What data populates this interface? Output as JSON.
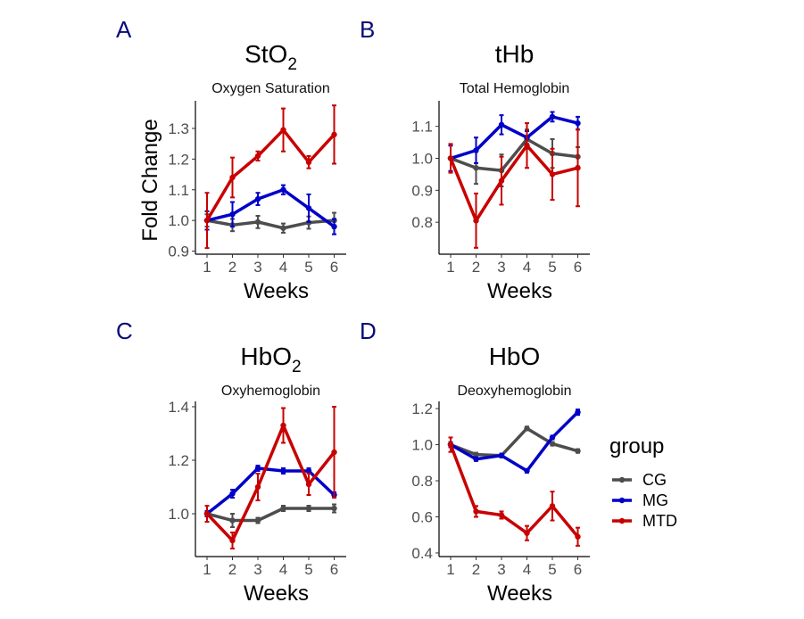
{
  "chart_data": [
    {
      "panel": "A",
      "type": "line",
      "title_main": "StO",
      "title_sub": "2",
      "subtitle": "Oxygen Saturation",
      "xlabel": "Weeks",
      "ylabel": "Fold Change",
      "x": [
        1,
        2,
        3,
        4,
        5,
        6
      ],
      "xticks": [
        1,
        2,
        3,
        4,
        5,
        6
      ],
      "yticks": [
        0.9,
        1.0,
        1.1,
        1.2,
        1.3
      ],
      "ytick_labels": [
        "0.9",
        "1.0",
        "1.1",
        "1.2",
        "1.3"
      ],
      "ylim": [
        0.89,
        1.39
      ],
      "series": [
        {
          "name": "CG",
          "values": [
            1.0,
            0.985,
            0.995,
            0.975,
            0.993,
            1.0
          ],
          "errors": [
            0.02,
            0.02,
            0.02,
            0.015,
            0.02,
            0.025
          ]
        },
        {
          "name": "MG",
          "values": [
            1.0,
            1.02,
            1.07,
            1.1,
            1.04,
            0.98
          ],
          "errors": [
            0.03,
            0.04,
            0.02,
            0.015,
            0.045,
            0.025
          ]
        },
        {
          "name": "MTD",
          "values": [
            1.0,
            1.14,
            1.21,
            1.295,
            1.19,
            1.28
          ],
          "errors": [
            0.09,
            0.065,
            0.015,
            0.07,
            0.02,
            0.095
          ]
        }
      ]
    },
    {
      "panel": "B",
      "type": "line",
      "title_main": "tHb",
      "title_sub": "",
      "subtitle": "Total Hemoglobin",
      "xlabel": "Weeks",
      "ylabel": "",
      "x": [
        1,
        2,
        3,
        4,
        5,
        6
      ],
      "xticks": [
        1,
        2,
        3,
        4,
        5,
        6
      ],
      "yticks": [
        0.8,
        0.9,
        1.0,
        1.1
      ],
      "ytick_labels": [
        "0.8",
        "0.9",
        "1.0",
        "1.1"
      ],
      "ylim": [
        0.7,
        1.18
      ],
      "series": [
        {
          "name": "CG",
          "values": [
            1.0,
            0.97,
            0.962,
            1.06,
            1.015,
            1.005
          ],
          "errors": [
            0.04,
            0.05,
            0.05,
            0.03,
            0.045,
            0.03
          ]
        },
        {
          "name": "MG",
          "values": [
            1.0,
            1.025,
            1.105,
            1.065,
            1.13,
            1.11
          ],
          "errors": [
            0.04,
            0.04,
            0.03,
            0.02,
            0.015,
            0.02
          ]
        },
        {
          "name": "MTD",
          "values": [
            1.0,
            0.805,
            0.93,
            1.04,
            0.95,
            0.97
          ],
          "errors": [
            0.045,
            0.085,
            0.075,
            0.07,
            0.08,
            0.12
          ]
        }
      ]
    },
    {
      "panel": "C",
      "type": "line",
      "title_main": "HbO",
      "title_sub": "2",
      "subtitle": "Oxyhemoglobin",
      "xlabel": "Weeks",
      "ylabel": "",
      "x": [
        1,
        2,
        3,
        4,
        5,
        6
      ],
      "xticks": [
        1,
        2,
        3,
        4,
        5,
        6
      ],
      "yticks": [
        1.0,
        1.2,
        1.4
      ],
      "ytick_labels": [
        "1.0",
        "1.2",
        "1.4"
      ],
      "ylim": [
        0.84,
        1.42
      ],
      "series": [
        {
          "name": "CG",
          "values": [
            1.0,
            0.975,
            0.975,
            1.02,
            1.02,
            1.02
          ],
          "errors": [
            0.01,
            0.025,
            0.01,
            0.01,
            0.01,
            0.015
          ]
        },
        {
          "name": "MG",
          "values": [
            1.0,
            1.075,
            1.17,
            1.16,
            1.16,
            1.07
          ],
          "errors": [
            0.01,
            0.015,
            0.01,
            0.01,
            0.01,
            0.01
          ]
        },
        {
          "name": "MTD",
          "values": [
            1.0,
            0.9,
            1.1,
            1.33,
            1.11,
            1.23
          ],
          "errors": [
            0.03,
            0.03,
            0.05,
            0.065,
            0.04,
            0.17
          ]
        }
      ]
    },
    {
      "panel": "D",
      "type": "line",
      "title_main": "HbO",
      "title_sub": "",
      "subtitle": "Deoxyhemoglobin",
      "xlabel": "Weeks",
      "ylabel": "",
      "x": [
        1,
        2,
        3,
        4,
        5,
        6
      ],
      "xticks": [
        1,
        2,
        3,
        4,
        5,
        6
      ],
      "yticks": [
        0.4,
        0.6,
        0.8,
        1.0,
        1.2
      ],
      "ytick_labels": [
        "0.4",
        "0.6",
        "0.8",
        "1.0",
        "1.2"
      ],
      "ylim": [
        0.38,
        1.24
      ],
      "series": [
        {
          "name": "CG",
          "values": [
            1.0,
            0.945,
            0.94,
            1.09,
            1.005,
            0.965
          ],
          "errors": [
            0.015,
            0.01,
            0.01,
            0.01,
            0.01,
            0.01
          ]
        },
        {
          "name": "MG",
          "values": [
            1.0,
            0.92,
            0.94,
            0.855,
            1.04,
            1.18
          ],
          "errors": [
            0.01,
            0.01,
            0.01,
            0.01,
            0.01,
            0.015
          ]
        },
        {
          "name": "MTD",
          "values": [
            1.0,
            0.63,
            0.61,
            0.51,
            0.66,
            0.49
          ],
          "errors": [
            0.04,
            0.03,
            0.02,
            0.04,
            0.08,
            0.05
          ]
        }
      ]
    }
  ],
  "legend": {
    "title": "group",
    "items": [
      {
        "label": "CG",
        "color": "#4d4d4d"
      },
      {
        "label": "MG",
        "color": "#0000c8"
      },
      {
        "label": "MTD",
        "color": "#c80000"
      }
    ]
  },
  "panel_letter_color": "#0a0a7a",
  "colors": {
    "CG": "#4d4d4d",
    "MG": "#0000c8",
    "MTD": "#c80000"
  }
}
